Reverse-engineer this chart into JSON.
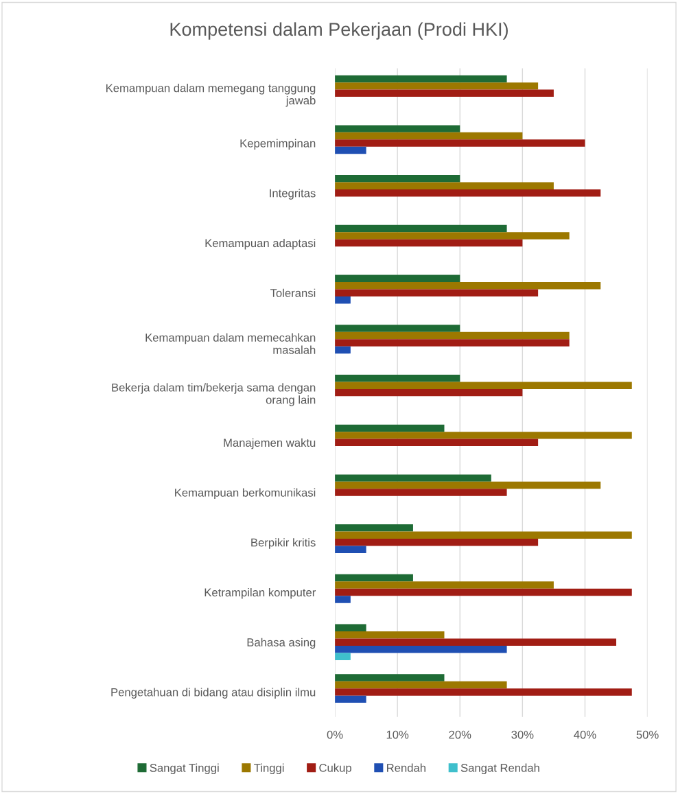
{
  "chart_data": {
    "type": "bar",
    "orientation": "horizontal",
    "title": "Kompetensi dalam Pekerjaan (Prodi HKI)",
    "categories": [
      "Kemampuan dalam memegang tanggung\njawab",
      "Kepemimpinan",
      "Integritas",
      "Kemampuan adaptasi",
      "Toleransi",
      "Kemampuan dalam memecahkan\nmasalah",
      "Bekerja dalam tim/bekerja sama dengan\norang lain",
      "Manajemen waktu",
      "Kemampuan berkomunikasi",
      "Berpikir kritis",
      "Ketrampilan komputer",
      "Bahasa asing",
      "Pengetahuan di bidang atau disiplin ilmu"
    ],
    "series": [
      {
        "name": "Sangat Tinggi",
        "color": "#1e6b35",
        "values": [
          27.5,
          20,
          20,
          27.5,
          20,
          20,
          20,
          17.5,
          25,
          12.5,
          12.5,
          5,
          17.5
        ]
      },
      {
        "name": "Tinggi",
        "color": "#9c7800",
        "values": [
          32.5,
          30,
          35,
          37.5,
          42.5,
          37.5,
          47.5,
          47.5,
          42.5,
          47.5,
          35,
          17.5,
          27.5
        ]
      },
      {
        "name": "Cukup",
        "color": "#a11d14",
        "values": [
          35,
          40,
          42.5,
          30,
          32.5,
          37.5,
          30,
          32.5,
          27.5,
          32.5,
          47.5,
          45,
          47.5
        ]
      },
      {
        "name": "Rendah",
        "color": "#1f4fb3",
        "values": [
          0,
          5,
          0,
          0,
          2.5,
          2.5,
          0,
          0,
          0,
          5,
          2.5,
          27.5,
          5
        ]
      },
      {
        "name": "Sangat Rendah",
        "color": "#3fbfcc",
        "values": [
          0,
          0,
          0,
          0,
          0,
          0,
          0,
          0,
          0,
          0,
          0,
          2.5,
          0
        ]
      }
    ],
    "xlim": [
      0,
      50
    ],
    "xticks": [
      {
        "value": 0,
        "label": "0%"
      },
      {
        "value": 10,
        "label": "10%"
      },
      {
        "value": 20,
        "label": "20%"
      },
      {
        "value": 30,
        "label": "30%"
      },
      {
        "value": 40,
        "label": "40%"
      },
      {
        "value": 50,
        "label": "50%"
      }
    ],
    "grid": "x",
    "legend": "bottom"
  }
}
